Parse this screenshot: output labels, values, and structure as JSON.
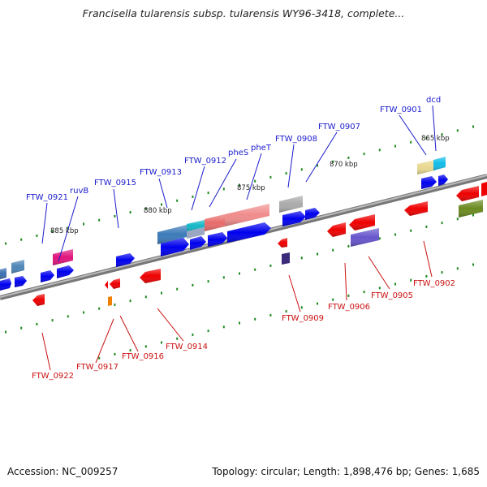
{
  "title": "Francisella tularensis subsp. tularensis WY96-3418, complete...",
  "footer": {
    "accession": "Accession: NC_009257",
    "summary": "Topology: circular; Length: 1,898,476 bp; Genes: 1,685"
  },
  "colors": {
    "forward_label": "#1a1acc",
    "reverse_label": "#cc1111",
    "backbone": "#888888",
    "tick": "#1f8a1f"
  },
  "scale_labels": [
    "885 kbp",
    "880 kbp",
    "875 kbp",
    "870 kbp",
    "865 kbp"
  ],
  "forward_genes": [
    "FTW_0921",
    "ruvB",
    "FTW_0915",
    "FTW_0913",
    "FTW_0912",
    "pheS",
    "pheT",
    "FTW_0908",
    "FTW_0907",
    "FTW_0901",
    "dcd"
  ],
  "reverse_genes": [
    "FTW_0922",
    "FTW_0917",
    "FTW_0916",
    "FTW_0914",
    "FTW_0909",
    "FTW_0906",
    "FTW_0905",
    "FTW_0902"
  ]
}
